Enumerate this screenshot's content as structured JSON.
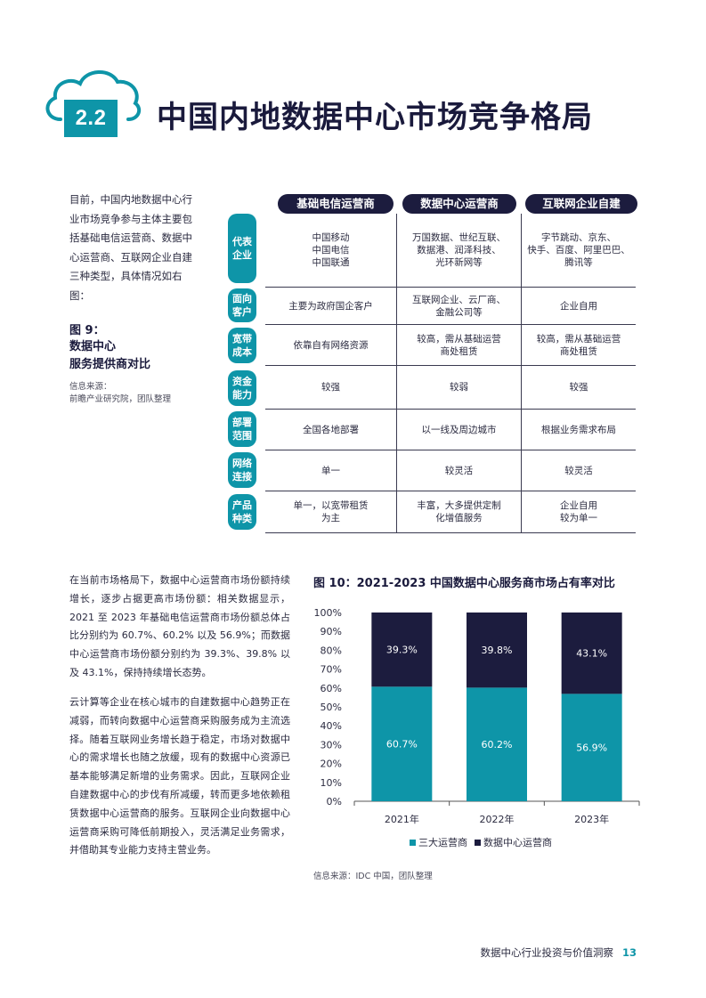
{
  "header": {
    "section_number": "2.2",
    "title": "中国内地数据中心市场竞争格局"
  },
  "intro": {
    "text": "目前，中国内地数据中心行业市场竞争参与主体主要包括基础电信运营商、数据中心运营商、互联网企业自建三种类型，具体情况如右图：",
    "figure_label": "图 9：",
    "figure_title": "数据中心\n服务提供商对比",
    "source": "信息来源：\n前瞻产业研究院，团队整理"
  },
  "table": {
    "columns": [
      "基础电信运营商",
      "数据中心运营商",
      "互联网企业自建"
    ],
    "rows": [
      {
        "label": "代表\n企业",
        "cells": [
          "中国移动\n中国电信\n中国联通",
          "万国数据、世纪互联、\n数据港、润泽科技、\n光环新网等",
          "字节跳动、京东、\n快手、百度、阿里巴巴、\n腾讯等"
        ]
      },
      {
        "label": "面向\n客户",
        "cells": [
          "主要为政府国企客户",
          "互联网企业、云厂商、\n金融公司等",
          "企业自用"
        ]
      },
      {
        "label": "宽带\n成本",
        "cells": [
          "依靠自有网络资源",
          "较高，需从基础运营\n商处租赁",
          "较高，需从基础运营\n商处租赁"
        ]
      },
      {
        "label": "资金\n能力",
        "cells": [
          "较强",
          "较弱",
          "较强"
        ]
      },
      {
        "label": "部署\n范围",
        "cells": [
          "全国各地部署",
          "以一线及周边城市",
          "根据业务需求布局"
        ]
      },
      {
        "label": "网络\n连接",
        "cells": [
          "单一",
          "较灵活",
          "较灵活"
        ]
      },
      {
        "label": "产品\n种类",
        "cells": [
          "单一，以宽带租赁\n为主",
          "丰富，大多提供定制\n化增值服务",
          "企业自用\n较为单一"
        ]
      }
    ]
  },
  "body": {
    "p1": "在当前市场格局下，数据中心运营商市场份额持续增长，逐步占据更高市场份额：相关数据显示，2021 至 2023 年基础电信运营商市场份额总体占比分别约为 60.7%、60.2% 以及 56.9%；而数据中心运营商市场份额分别约为 39.3%、39.8% 以及 43.1%，保持持续增长态势。",
    "p2": "云计算等企业在核心城市的自建数据中心趋势正在减弱，而转向数据中心运营商采购服务成为主流选择。随着互联网业务增长趋于稳定，市场对数据中心的需求增长也随之放缓，现有的数据中心资源已基本能够满足新增的业务需求。因此，互联网企业自建数据中心的步伐有所减缓，转而更多地依赖租赁数据中心运营商的服务。互联网企业向数据中心运营商采购可降低前期投入，灵活满足业务需求，并借助其专业能力支持主营业务。"
  },
  "chart_title": "图 10：2021-2023 中国数据中心服务商市场占有率对比",
  "chart_source": "信息来源：IDC 中国，团队整理",
  "chart_data": {
    "type": "bar",
    "stacked": true,
    "categories": [
      "2021年",
      "2022年",
      "2023年"
    ],
    "series": [
      {
        "name": "三大运营商",
        "values": [
          60.7,
          60.2,
          56.9
        ],
        "labels": [
          "60.7%",
          "60.2%",
          "56.9%"
        ],
        "color": "#0e95a8"
      },
      {
        "name": "数据中心运营商",
        "values": [
          39.3,
          39.8,
          43.1
        ],
        "labels": [
          "39.3%",
          "39.8%",
          "43.1%"
        ],
        "color": "#1c1c3e"
      }
    ],
    "yticks": [
      "0%",
      "10%",
      "20%",
      "30%",
      "40%",
      "50%",
      "60%",
      "70%",
      "80%",
      "90%",
      "100%"
    ],
    "ylim": [
      0,
      100
    ],
    "legend_position": "bottom",
    "grid": false
  },
  "footer": {
    "text": "数据中心行业投资与价值洞察",
    "page": "13"
  },
  "colors": {
    "accent": "#0e95a8",
    "navy": "#1c1c3e"
  }
}
